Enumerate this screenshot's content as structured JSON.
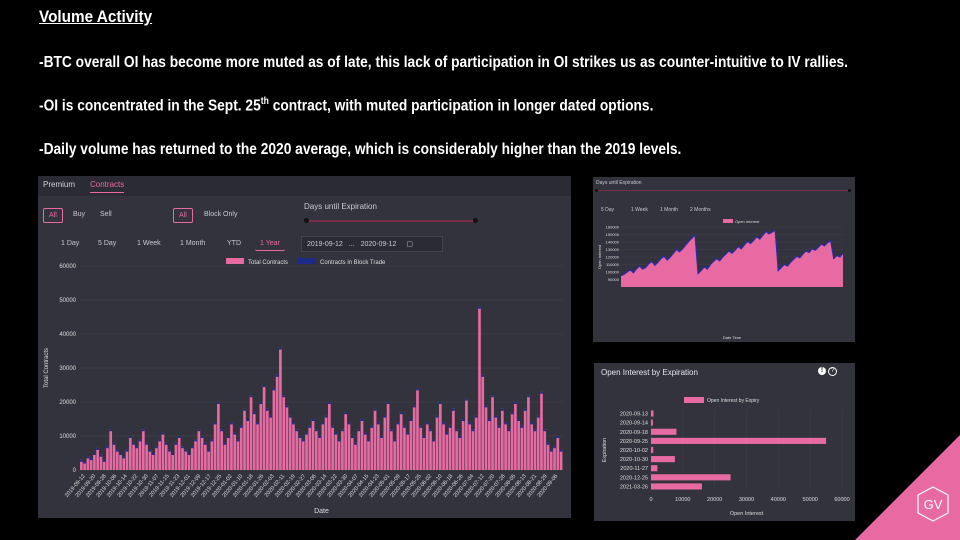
{
  "slide": {
    "title": "Volume Activity",
    "bullet1": "-BTC overall OI has become more muted as of late, this lack of participation in OI strikes us as counter-intuitive to IV rallies.",
    "bullet2_pre": "-OI is concentrated in the Sept. 25",
    "bullet2_sup": "th",
    "bullet2_post": " contract, with muted participation in longer dated options.",
    "bullet3": "-Daily volume has returned to the 2020 average, which is considerably higher than the 2019 levels.",
    "logo_text": "GV"
  },
  "volume_panel": {
    "tabs": [
      "Premium",
      "Contracts"
    ],
    "active_tab": "Contracts",
    "filter_a": [
      "All",
      "Buy",
      "Sell"
    ],
    "filter_b": [
      "All",
      "Block Only"
    ],
    "days_label": "Days until Expiration",
    "ranges": [
      "1 Day",
      "5 Day",
      "1 Week",
      "1 Month",
      "YTD",
      "1 Year"
    ],
    "active_range": "1 Year",
    "date_from": "2019-09-12",
    "date_sep": "...",
    "date_to": "2020-09-12",
    "calendar_icon": "calendar-icon"
  },
  "oi_panel": {
    "header": "Days until Expiration",
    "ranges": [
      "5 Day",
      "1 Week",
      "1 Month",
      "2 Months"
    ]
  },
  "exp_panel": {
    "title": "Open Interest by Expiration",
    "icons": [
      "info-icon",
      "help-icon"
    ]
  },
  "chart_data": [
    {
      "type": "bar",
      "legend": [
        "Total Contracts",
        "Contracts in Block Trade"
      ],
      "legend_placement": "top-center",
      "ylabel": "Total Contracts",
      "xlabel": "Date",
      "ylim": [
        0,
        60000
      ],
      "yticks": [
        "0",
        "10000",
        "20000",
        "30000",
        "40000",
        "50000",
        "60000"
      ],
      "xticks": [
        "2019-09-12",
        "2019-09-20",
        "2019-09-28",
        "2019-10-06",
        "2019-10-14",
        "2019-10-22",
        "2019-10-30",
        "2019-11-07",
        "2019-11-15",
        "2019-11-23",
        "2019-12-01",
        "2019-12-09",
        "2019-12-17",
        "2019-12-25",
        "2020-01-02",
        "2020-01-10",
        "2020-01-18",
        "2020-01-26",
        "2020-02-03",
        "2020-02-11",
        "2020-02-19",
        "2020-02-27",
        "2020-03-06",
        "2020-03-14",
        "2020-03-22",
        "2020-03-30",
        "2020-04-07",
        "2020-04-15",
        "2020-04-23",
        "2020-05-01",
        "2020-05-09",
        "2020-05-17",
        "2020-05-25",
        "2020-06-02",
        "2020-06-10",
        "2020-06-18",
        "2020-06-26",
        "2020-07-04",
        "2020-07-12",
        "2020-07-20",
        "2020-07-28",
        "2020-08-05",
        "2020-08-13",
        "2020-08-21",
        "2020-08-29",
        "2020-09-06"
      ],
      "grid": true,
      "series": [
        {
          "name": "Total Contracts",
          "color": "#e86aa3",
          "values": [
            3000,
            2500,
            4000,
            3500,
            5000,
            6500,
            4500,
            3000,
            7000,
            12000,
            8000,
            6000,
            5000,
            4000,
            6000,
            10000,
            8000,
            7000,
            9000,
            12000,
            8000,
            6000,
            5000,
            7000,
            9000,
            11000,
            8000,
            6000,
            5000,
            8000,
            10000,
            7000,
            6000,
            5000,
            7000,
            9000,
            12000,
            10000,
            8000,
            6000,
            9000,
            14000,
            20000,
            12000,
            8000,
            10000,
            14000,
            11000,
            9000,
            13000,
            18000,
            15000,
            22000,
            17000,
            14000,
            20000,
            25000,
            18000,
            16000,
            24000,
            28000,
            36000,
            22000,
            19000,
            16000,
            14000,
            12000,
            10000,
            9000,
            11000,
            13000,
            15000,
            12000,
            10000,
            14000,
            16000,
            20000,
            13000,
            11000,
            9000,
            12000,
            17000,
            14000,
            10000,
            8000,
            12000,
            15000,
            11000,
            9000,
            13000,
            18000,
            14000,
            10000,
            16000,
            20000,
            12000,
            9000,
            14000,
            17000,
            13000,
            11000,
            15000,
            19000,
            24000,
            13000,
            10000,
            14000,
            12000,
            9000,
            16000,
            20000,
            14000,
            11000,
            13000,
            18000,
            12000,
            10000,
            15000,
            21000,
            14000,
            12000,
            16000,
            48000,
            28000,
            19000,
            15000,
            22000,
            16000,
            13000,
            18000,
            14000,
            12000,
            17000,
            20000,
            15000,
            13000,
            18000,
            22000,
            14000,
            12000,
            16000,
            23000,
            12000,
            8000,
            6000,
            7000,
            10000,
            6000
          ]
        },
        {
          "name": "Contracts in Block Trade",
          "color": "#1e2a8a"
        }
      ]
    },
    {
      "type": "area",
      "legend": [
        "Open Interest"
      ],
      "ylabel": "Open Interest",
      "xlabel": "Date Time",
      "ylim": [
        80000,
        160000
      ],
      "yticks": [
        "90000",
        "100000",
        "110000",
        "120000",
        "130000",
        "140000",
        "150000",
        "160000"
      ],
      "values": [
        95000,
        97000,
        100000,
        103000,
        99000,
        104000,
        108000,
        104000,
        106000,
        111000,
        114000,
        109000,
        113000,
        118000,
        121000,
        116000,
        120000,
        125000,
        130000,
        127000,
        131000,
        136000,
        141000,
        145000,
        150000,
        98000,
        102000,
        107000,
        104000,
        110000,
        114000,
        118000,
        115000,
        120000,
        124000,
        128000,
        125000,
        129000,
        134000,
        131000,
        136000,
        141000,
        138000,
        142000,
        147000,
        144000,
        149000,
        154000,
        151000,
        153000,
        156000,
        102000,
        106000,
        110000,
        108000,
        113000,
        117000,
        121000,
        119000,
        124000,
        128000,
        126000,
        131000,
        129000,
        133000,
        137000,
        135000,
        139000,
        142000,
        118000,
        122000,
        120000,
        125000
      ]
    },
    {
      "type": "bar",
      "orientation": "horizontal",
      "legend": [
        "Open Interest by Expiry"
      ],
      "ylabel": "Expiration",
      "xlabel": "Open Interest",
      "xlim": [
        0,
        60000
      ],
      "xticks": [
        "0",
        "10000",
        "20000",
        "30000",
        "40000",
        "50000",
        "60000"
      ],
      "categories": [
        "2020-09-13",
        "2020-09-14",
        "2020-09-18",
        "2020-09-25",
        "2020-10-02",
        "2020-10-30",
        "2020-11-27",
        "2020-12-25",
        "2021-03-26"
      ],
      "values": [
        800,
        600,
        8000,
        55000,
        700,
        7500,
        2000,
        25000,
        16000
      ]
    }
  ]
}
